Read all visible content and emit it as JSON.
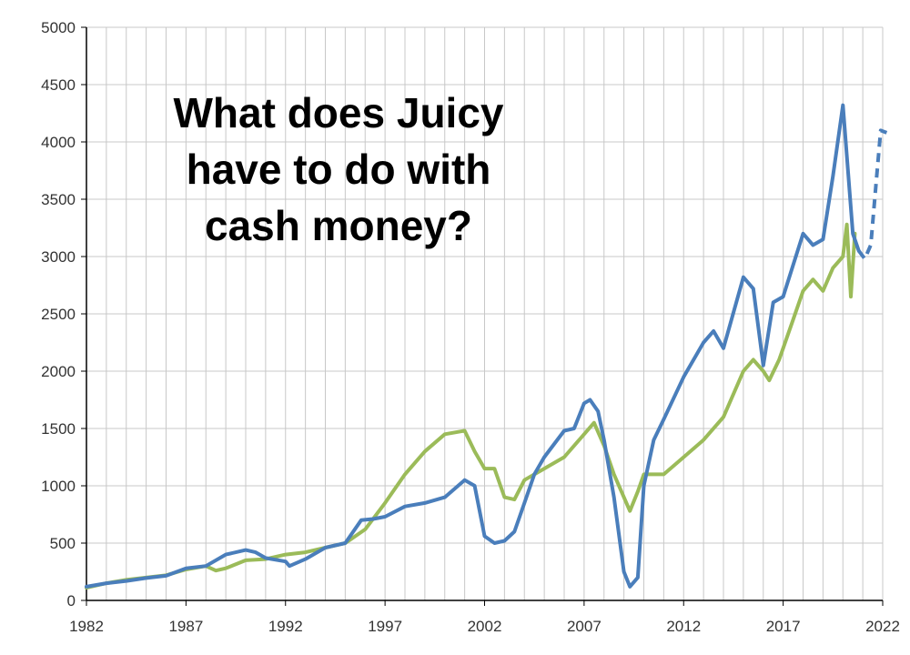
{
  "chart_data": {
    "type": "line",
    "title": "",
    "xlabel": "",
    "ylabel": "",
    "annotation_lines": [
      "What does Juicy",
      "have to do with",
      "cash money?"
    ],
    "xlim": [
      1982,
      2022
    ],
    "ylim": [
      0,
      5000
    ],
    "x_ticks": [
      "1982",
      "1987",
      "1992",
      "1997",
      "2002",
      "2007",
      "2012",
      "2017",
      "2022"
    ],
    "y_ticks": [
      "0",
      "500",
      "1000",
      "1500",
      "2000",
      "2500",
      "3000",
      "3500",
      "4000",
      "4500",
      "5000"
    ],
    "grid": true,
    "legend": "none",
    "colors": {
      "series_blue": "#4a7ebb",
      "series_green": "#9bbb59",
      "grid": "#c8c8c8",
      "axis": "#000000"
    },
    "series": [
      {
        "color": "#4a7ebb",
        "style": "solid",
        "points": [
          [
            1982,
            120
          ],
          [
            1983,
            150
          ],
          [
            1984,
            170
          ],
          [
            1985,
            195
          ],
          [
            1986,
            215
          ],
          [
            1987,
            280
          ],
          [
            1988,
            300
          ],
          [
            1989,
            400
          ],
          [
            1990,
            440
          ],
          [
            1990.5,
            420
          ],
          [
            1991,
            370
          ],
          [
            1992,
            340
          ],
          [
            1992.2,
            300
          ],
          [
            1993,
            360
          ],
          [
            1994,
            460
          ],
          [
            1995,
            500
          ],
          [
            1995.8,
            700
          ],
          [
            1996.4,
            710
          ],
          [
            1997,
            730
          ],
          [
            1998,
            820
          ],
          [
            1999,
            850
          ],
          [
            2000,
            900
          ],
          [
            2001,
            1050
          ],
          [
            2001.5,
            1000
          ],
          [
            2002,
            560
          ],
          [
            2002.5,
            500
          ],
          [
            2003,
            520
          ],
          [
            2003.5,
            600
          ],
          [
            2004,
            850
          ],
          [
            2004.5,
            1100
          ],
          [
            2005,
            1250
          ],
          [
            2006,
            1480
          ],
          [
            2006.5,
            1500
          ],
          [
            2007,
            1720
          ],
          [
            2007.3,
            1750
          ],
          [
            2007.7,
            1650
          ],
          [
            2008,
            1400
          ],
          [
            2008.5,
            900
          ],
          [
            2009,
            250
          ],
          [
            2009.3,
            120
          ],
          [
            2009.7,
            200
          ],
          [
            2010,
            1000
          ],
          [
            2010.5,
            1400
          ],
          [
            2011,
            1580
          ],
          [
            2012,
            1950
          ],
          [
            2013,
            2250
          ],
          [
            2013.5,
            2350
          ],
          [
            2014,
            2200
          ],
          [
            2015,
            2820
          ],
          [
            2015.5,
            2720
          ],
          [
            2016,
            2050
          ],
          [
            2016.5,
            2600
          ],
          [
            2017,
            2650
          ],
          [
            2018,
            3200
          ],
          [
            2018.5,
            3100
          ],
          [
            2019,
            3150
          ],
          [
            2019.5,
            3700
          ],
          [
            2020,
            4320
          ],
          [
            2020.5,
            3200
          ],
          [
            2020.8,
            3050
          ]
        ]
      },
      {
        "color": "#4a7ebb",
        "style": "dashed",
        "points": [
          [
            2020.8,
            3050
          ],
          [
            2021.1,
            2980
          ],
          [
            2021.4,
            3100
          ],
          [
            2021.7,
            3700
          ],
          [
            2021.9,
            4100
          ],
          [
            2022.2,
            4080
          ]
        ]
      },
      {
        "color": "#9bbb59",
        "style": "solid",
        "points": [
          [
            1982,
            110
          ],
          [
            1983,
            150
          ],
          [
            1984,
            180
          ],
          [
            1985,
            200
          ],
          [
            1986,
            220
          ],
          [
            1987,
            270
          ],
          [
            1988,
            300
          ],
          [
            1988.5,
            260
          ],
          [
            1989,
            280
          ],
          [
            1990,
            350
          ],
          [
            1991,
            360
          ],
          [
            1992,
            400
          ],
          [
            1993,
            420
          ],
          [
            1994,
            460
          ],
          [
            1995,
            500
          ],
          [
            1996,
            620
          ],
          [
            1997,
            850
          ],
          [
            1998,
            1100
          ],
          [
            1999,
            1300
          ],
          [
            2000,
            1450
          ],
          [
            2001,
            1480
          ],
          [
            2001.5,
            1300
          ],
          [
            2002,
            1150
          ],
          [
            2002.5,
            1150
          ],
          [
            2003,
            900
          ],
          [
            2003.5,
            880
          ],
          [
            2004,
            1050
          ],
          [
            2005,
            1150
          ],
          [
            2006,
            1250
          ],
          [
            2007,
            1450
          ],
          [
            2007.5,
            1550
          ],
          [
            2008,
            1350
          ],
          [
            2008.5,
            1100
          ],
          [
            2009,
            900
          ],
          [
            2009.3,
            780
          ],
          [
            2009.7,
            950
          ],
          [
            2010,
            1100
          ],
          [
            2011,
            1100
          ],
          [
            2012,
            1250
          ],
          [
            2013,
            1400
          ],
          [
            2014,
            1600
          ],
          [
            2015,
            2000
          ],
          [
            2015.5,
            2100
          ],
          [
            2016,
            2000
          ],
          [
            2016.3,
            1920
          ],
          [
            2016.8,
            2100
          ],
          [
            2017,
            2200
          ],
          [
            2017.5,
            2450
          ],
          [
            2018,
            2700
          ],
          [
            2018.5,
            2800
          ],
          [
            2019,
            2700
          ],
          [
            2019.5,
            2900
          ],
          [
            2020,
            3000
          ],
          [
            2020.2,
            3280
          ],
          [
            2020.4,
            2650
          ],
          [
            2020.6,
            3200
          ]
        ]
      }
    ]
  }
}
